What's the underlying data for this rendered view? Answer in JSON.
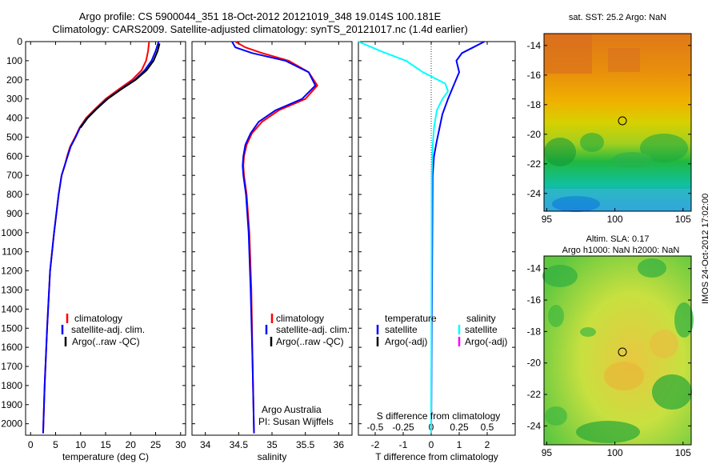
{
  "header": {
    "line1": "Argo profile: CS 5900044_351 18-Oct-2012 20121019_348 19.014S 100.181E",
    "line2": "Climatology: CARS2009. Satellite-adjusted climatology: synTS_20121017.nc (1.4d earlier)"
  },
  "footer_stamp": "IMOS 24-Oct-2012 17:02:00",
  "colors": {
    "red": "#ff0000",
    "blue": "#0000ff",
    "black": "#000000",
    "cyan": "#00ffff",
    "magenta": "#ff00ff"
  },
  "chart_data": [
    {
      "type": "line",
      "id": "temperature",
      "xlabel": "temperature (deg C)",
      "xlim": [
        -1,
        31
      ],
      "xticks": [
        0,
        5,
        10,
        15,
        20,
        25,
        30
      ],
      "ylim": [
        2060,
        0
      ],
      "yticks": [
        0,
        100,
        200,
        300,
        400,
        500,
        600,
        700,
        800,
        900,
        1000,
        1100,
        1200,
        1300,
        1400,
        1500,
        1600,
        1700,
        1800,
        1900,
        2000
      ],
      "legend": [
        "climatology",
        "satellite-adj. clim.",
        "Argo(..raw -QC)"
      ],
      "series": [
        {
          "name": "climatology",
          "color": "#ff0000",
          "x": [
            23.7,
            23.5,
            23.1,
            22.2,
            20.3,
            17.6,
            15.0,
            13.0,
            11.1,
            9.8,
            8.9,
            7.9,
            7.3,
            6.8,
            6.2,
            5.6,
            4.7,
            3.9,
            3.3,
            2.8,
            2.5
          ],
          "y": [
            0,
            50,
            100,
            150,
            200,
            250,
            300,
            350,
            400,
            450,
            500,
            550,
            600,
            650,
            700,
            800,
            1000,
            1200,
            1500,
            1800,
            2050
          ]
        },
        {
          "name": "satellite-adj. clim.",
          "color": "#0000ff",
          "x": [
            25.6,
            25.0,
            24.2,
            22.8,
            20.8,
            18.0,
            15.3,
            13.2,
            11.3,
            9.9,
            9.0,
            8.0,
            7.4,
            6.8,
            6.2,
            5.6,
            4.7,
            3.9,
            3.3,
            2.8,
            2.5
          ],
          "y": [
            0,
            50,
            100,
            150,
            200,
            250,
            300,
            350,
            400,
            450,
            500,
            550,
            600,
            650,
            700,
            800,
            1000,
            1200,
            1500,
            1800,
            2050
          ]
        },
        {
          "name": "Argo(..raw -QC)",
          "color": "#000000",
          "x": [
            25.8,
            25.4,
            24.6,
            23.2,
            21.0,
            18.1,
            15.4,
            13.3,
            11.4,
            10.0
          ],
          "y": [
            10,
            50,
            100,
            150,
            200,
            250,
            300,
            350,
            400,
            450
          ]
        }
      ]
    },
    {
      "type": "line",
      "id": "salinity",
      "xlabel": "salinity",
      "xlim": [
        33.8,
        36.2
      ],
      "xticks": [
        34,
        34.5,
        35,
        35.5,
        36
      ],
      "ylim": [
        2060,
        0
      ],
      "legend": [
        "climatology",
        "satellite-adj. clim.",
        "Argo(..raw -QC)"
      ],
      "annotation": [
        "Argo Australia",
        "PI: Susan Wijffels"
      ],
      "series": [
        {
          "name": "climatology",
          "color": "#ff0000",
          "x": [
            34.45,
            34.6,
            34.85,
            35.25,
            35.55,
            35.68,
            35.5,
            35.1,
            34.85,
            34.7,
            34.62,
            34.58,
            34.57,
            34.58,
            34.62,
            34.66,
            34.69,
            34.71,
            34.73
          ],
          "y": [
            0,
            30,
            60,
            100,
            160,
            230,
            300,
            360,
            420,
            480,
            540,
            600,
            650,
            700,
            800,
            1000,
            1300,
            1700,
            2050
          ]
        },
        {
          "name": "satellite-adj. clim.",
          "color": "#0000ff",
          "x": [
            34.4,
            34.45,
            34.7,
            35.2,
            35.55,
            35.65,
            35.45,
            35.05,
            34.8,
            34.68,
            34.6,
            34.57,
            34.56,
            34.57,
            34.61,
            34.65,
            34.68,
            34.71,
            34.73
          ],
          "y": [
            0,
            30,
            60,
            100,
            160,
            230,
            300,
            360,
            420,
            480,
            540,
            600,
            650,
            700,
            800,
            1000,
            1300,
            1700,
            2050
          ]
        },
        {
          "name": "Argo(..raw -QC)",
          "color": "#000000",
          "x": [],
          "y": []
        }
      ]
    },
    {
      "type": "line",
      "id": "difference",
      "xlabel": "T difference from climatology",
      "xlim": [
        -2.6,
        3.0
      ],
      "xticks": [
        -2,
        -1,
        0,
        1,
        2
      ],
      "top_label": "S difference from climatology",
      "top_ticks": [
        "-0.5",
        "-0.25",
        "0",
        "0.25",
        "0.5"
      ],
      "top_tick_values_T": [
        -2,
        -1,
        0,
        1,
        2
      ],
      "ylim": [
        2060,
        0
      ],
      "legend_temperature": {
        "title": "temperature",
        "items": [
          "satellite",
          "Argo(-adj)"
        ]
      },
      "legend_salinity": {
        "title": "salinity",
        "items": [
          "satellite",
          "Argo(-adj)"
        ]
      },
      "series": [
        {
          "name": "T satellite",
          "color": "#0000ff",
          "x": [
            1.9,
            1.5,
            1.1,
            0.9,
            1.0,
            0.8,
            0.6,
            0.4,
            0.3,
            0.2,
            0.1,
            0.05,
            0.0
          ],
          "y": [
            0,
            30,
            60,
            100,
            160,
            230,
            300,
            380,
            450,
            520,
            600,
            700,
            2050
          ]
        },
        {
          "name": "S satellite",
          "color": "#00ffff",
          "x": [
            -2.6,
            -1.8,
            -0.9,
            -0.3,
            0.5,
            0.6,
            0.4,
            0.2,
            0.1,
            0.05,
            0.02,
            0.0
          ],
          "y": [
            0,
            50,
            100,
            160,
            220,
            260,
            300,
            360,
            450,
            550,
            700,
            2050
          ]
        }
      ]
    }
  ],
  "maps": [
    {
      "id": "sst",
      "title": "sat. SST: 25.2  Argo: NaN",
      "xticks": [
        "95",
        "100",
        "105"
      ],
      "yticks": [
        "-14",
        "-16",
        "-18",
        "-20",
        "-22",
        "-24"
      ],
      "marker": {
        "lon": 100.181,
        "lat": -19.014
      }
    },
    {
      "id": "sla",
      "title_line1": "Altim. SLA: 0.17",
      "title_line2": "Argo h1000: NaN  h2000: NaN",
      "xticks": [
        "95",
        "100",
        "105"
      ],
      "yticks": [
        "-14",
        "-16",
        "-18",
        "-20",
        "-22",
        "-24"
      ],
      "marker": {
        "lon": 100.181,
        "lat": -19.014
      }
    }
  ]
}
